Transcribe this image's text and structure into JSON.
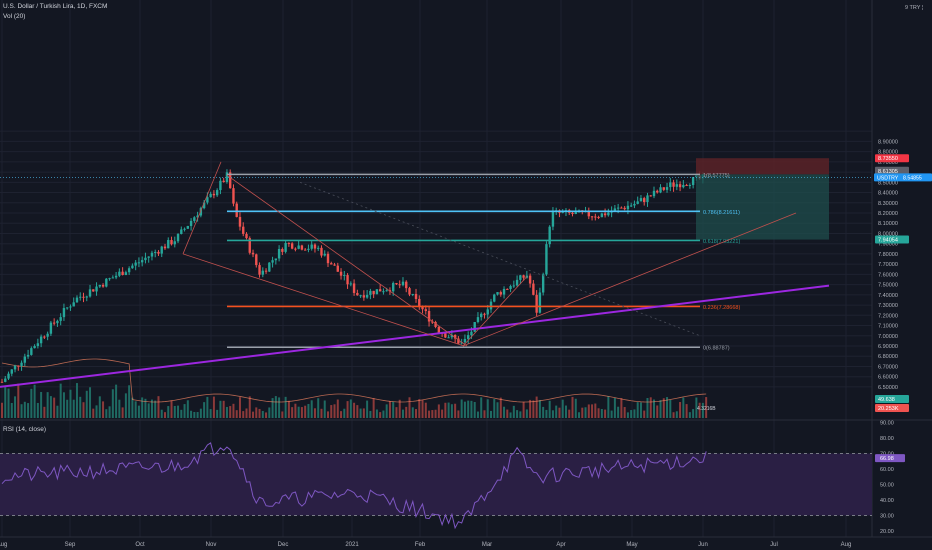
{
  "header": {
    "title": "U.S. Dollar / Turkish Lira, 1D, FXCM",
    "volume_label": "Vol (20)",
    "rsi_label": "RSI (14, close)",
    "currency_top": "9 TRY ¦"
  },
  "colors": {
    "background": "#131722",
    "grid": "#1e2230",
    "axis_text": "#b2b5be",
    "candle_up": "#26a69a",
    "candle_down": "#ef5350",
    "trendline_purple": "#9c27e0",
    "fib_gray": "#9aa0aa",
    "fib_cyan": "#4fc3f7",
    "fib_teal": "#26a69a",
    "fib_red": "#f4511e",
    "rsi_line": "#7e57c2",
    "rsi_band": "#2a1f44",
    "short_target": "#1f4e4c",
    "short_stop": "#5a2227"
  },
  "price_axis": {
    "ticks": [
      "8.90000",
      "8.80000",
      "8.70000",
      "8.50000",
      "8.40000",
      "8.30000",
      "8.20000",
      "8.10000",
      "8.00000",
      "7.90000",
      "7.80000",
      "7.70000",
      "7.60000",
      "7.50000",
      "7.40000",
      "7.30000",
      "7.20000",
      "7.10000",
      "7.00000",
      "6.90000",
      "6.80000",
      "6.70000",
      "6.60000",
      "6.50000"
    ],
    "top_label": "9 TRY ¦",
    "badges": [
      {
        "text": "8.73550",
        "kind": "stop"
      },
      {
        "text": "8.61305",
        "kind": "gray"
      },
      {
        "text": "USDTRY",
        "kind": "cyan"
      },
      {
        "text": "8.54855",
        "kind": "cyan"
      },
      {
        "text": "7.94054",
        "kind": "teal"
      },
      {
        "text": "49.638",
        "kind": "vol"
      },
      {
        "text": "20.253K",
        "kind": "volred"
      }
    ]
  },
  "time_axis": {
    "labels": [
      "Aug",
      "Sep",
      "Oct",
      "Nov",
      "Dec",
      "2021",
      "Feb",
      "Mar",
      "Apr",
      "May",
      "Jun",
      "Jul",
      "Aug"
    ]
  },
  "fibonacci": [
    {
      "level": "1",
      "price": 8.57775,
      "label": "1(8.57775)"
    },
    {
      "level": "0.786",
      "price": 8.21611,
      "label": "0.786(8.21611)"
    },
    {
      "level": "0.618",
      "price": 7.93221,
      "label": "0.618(7.93221)"
    },
    {
      "level": "0.236",
      "price": 7.28668,
      "label": "0.236(7.28668)"
    },
    {
      "level": "0",
      "price": 6.88787,
      "label": "0(6.88787)"
    }
  ],
  "rsi": {
    "ticks": [
      "90.00",
      "80.00",
      "70.00",
      "60.00",
      "50.00",
      "40.00",
      "30.00",
      "20.00"
    ],
    "value_label": "66.98",
    "overbought": 70,
    "oversold": 30
  },
  "volume_overlay_label": "4.3216B",
  "chart_data": {
    "type": "candlestick",
    "title": "U.S. Dollar / Turkish Lira, 1D, FXCM",
    "symbol": "USDTRY",
    "last_price": 8.54855,
    "x_range": [
      "2020-08",
      "2021-08"
    ],
    "ylim": [
      6.45,
      9.0
    ],
    "key_points": [
      {
        "date": "2020-08-01",
        "price": 6.55
      },
      {
        "date": "2020-09-01",
        "price": 7.35
      },
      {
        "date": "2020-10-01",
        "price": 7.75
      },
      {
        "date": "2020-10-15",
        "price": 7.95
      },
      {
        "date": "2020-11-06",
        "price": 8.57
      },
      {
        "date": "2020-11-09",
        "price": 8.2
      },
      {
        "date": "2020-11-20",
        "price": 7.6
      },
      {
        "date": "2020-12-01",
        "price": 7.9
      },
      {
        "date": "2020-12-15",
        "price": 7.85
      },
      {
        "date": "2021-01-01",
        "price": 7.4
      },
      {
        "date": "2021-01-20",
        "price": 7.5
      },
      {
        "date": "2021-02-05",
        "price": 7.05
      },
      {
        "date": "2021-02-15",
        "price": 6.92
      },
      {
        "date": "2021-03-01",
        "price": 7.4
      },
      {
        "date": "2021-03-15",
        "price": 7.6
      },
      {
        "date": "2021-03-19",
        "price": 7.22
      },
      {
        "date": "2021-03-25",
        "price": 8.2
      },
      {
        "date": "2021-04-15",
        "price": 8.18
      },
      {
        "date": "2021-05-01",
        "price": 8.3
      },
      {
        "date": "2021-05-15",
        "price": 8.47
      },
      {
        "date": "2021-05-31",
        "price": 8.55
      }
    ],
    "rsi_series_key_points": [
      {
        "date": "2020-08-01",
        "value": 55
      },
      {
        "date": "2020-10-15",
        "value": 62
      },
      {
        "date": "2020-11-06",
        "value": 78
      },
      {
        "date": "2020-11-20",
        "value": 38
      },
      {
        "date": "2021-01-01",
        "value": 45
      },
      {
        "date": "2021-02-15",
        "value": 25
      },
      {
        "date": "2021-03-10",
        "value": 70
      },
      {
        "date": "2021-03-19",
        "value": 55
      },
      {
        "date": "2021-05-31",
        "value": 67
      }
    ]
  }
}
